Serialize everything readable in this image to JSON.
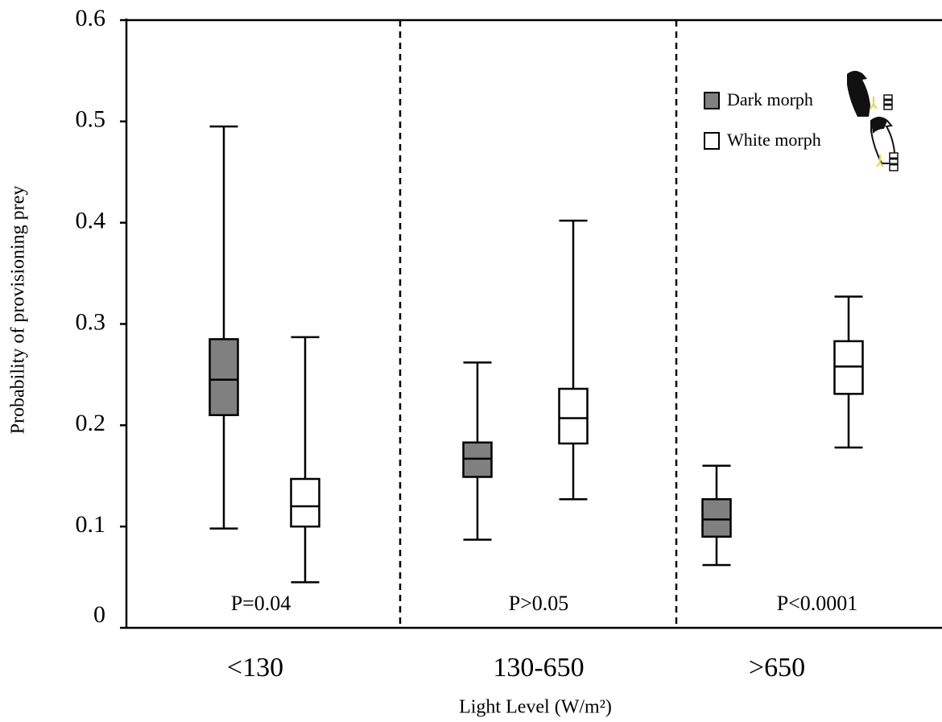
{
  "chart_data": {
    "type": "box",
    "y_label": "Probability of provisioning prey",
    "x_label": "Light Level (W/m²)",
    "categories": [
      "<130",
      "130-650",
      ">650"
    ],
    "annotations": [
      "P=0.04",
      "P>0.05",
      "P<0.0001"
    ],
    "series": [
      {
        "name": "Dark morph",
        "color": "#808080",
        "min": [
          0.098,
          0.087,
          0.062
        ],
        "q1": [
          0.21,
          0.149,
          0.09
        ],
        "median": [
          0.245,
          0.167,
          0.107
        ],
        "q3": [
          0.285,
          0.183,
          0.127
        ],
        "max": [
          0.495,
          0.262,
          0.16
        ]
      },
      {
        "name": "White morph",
        "color": "#ffffff",
        "min": [
          0.045,
          0.127,
          0.178
        ],
        "q1": [
          0.1,
          0.182,
          0.231
        ],
        "median": [
          0.12,
          0.207,
          0.258
        ],
        "q3": [
          0.147,
          0.236,
          0.283
        ],
        "max": [
          0.287,
          0.402,
          0.327
        ]
      }
    ],
    "ylim": [
      0,
      0.6
    ],
    "yticks": [
      0,
      0.1,
      0.2,
      0.3,
      0.4,
      0.5,
      0.6
    ]
  }
}
